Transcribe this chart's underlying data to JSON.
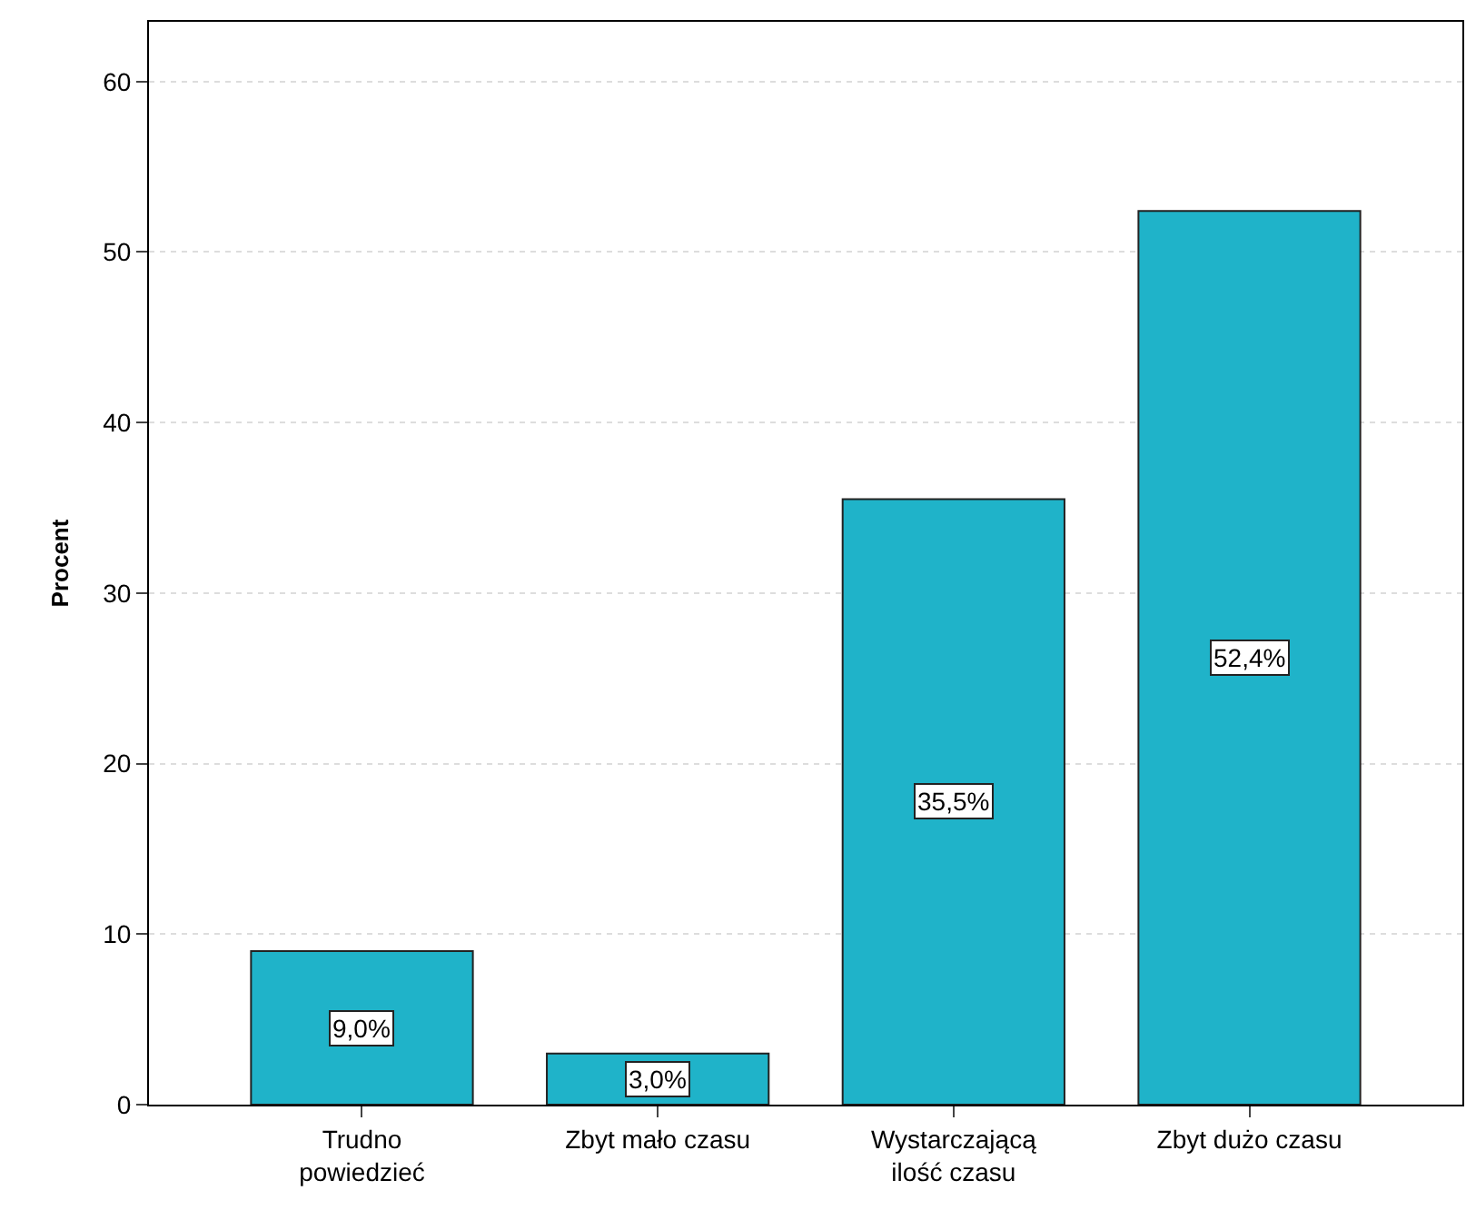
{
  "chart_data": {
    "type": "bar",
    "ylabel": "Procent",
    "categories": [
      "Trudno powiedzieć",
      "Zbyt mało czasu",
      "Wystarczającą ilość czasu",
      "Zbyt dużo czasu"
    ],
    "values": [
      9.0,
      3.0,
      35.5,
      52.4
    ],
    "value_labels": [
      "9,0%",
      "3,0%",
      "35,5%",
      "52,4%"
    ],
    "color": "#1fb3c9",
    "ylim": [
      0,
      63.5
    ],
    "yticks": [
      0,
      10,
      20,
      30,
      40,
      50,
      60
    ],
    "grid": "y"
  }
}
